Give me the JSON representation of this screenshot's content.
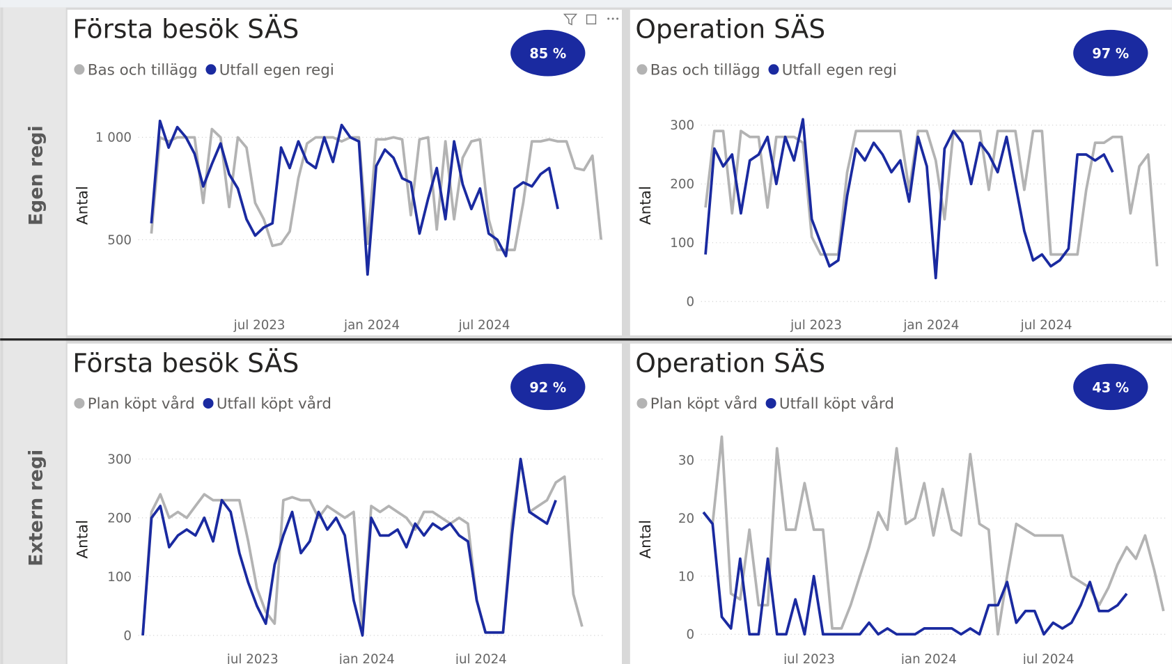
{
  "row_labels": [
    "Egen regi",
    "Extern regi"
  ],
  "chart_data": [
    {
      "type": "line",
      "title": "Första besök SÄS",
      "kpi": {
        "value": 85,
        "label": "85 %"
      },
      "y_label": "Antal",
      "grid": true,
      "xlim": [
        -3,
        105
      ],
      "xticks": [
        {
          "value": 25,
          "label": "jul 2023"
        },
        {
          "value": 51,
          "label": "jan 2024"
        },
        {
          "value": 77,
          "label": "jul 2024"
        }
      ],
      "ylim": [
        175,
        1160
      ],
      "yticks": [
        500,
        {
          "value": 1000,
          "label": "1 000"
        }
      ],
      "series": [
        {
          "name": "Bas och tillägg",
          "color": "#b3b3b3",
          "x": [
            0,
            2,
            4,
            6,
            8,
            10,
            12,
            14,
            16,
            18,
            20,
            22,
            24,
            26,
            28,
            30,
            32,
            34,
            36,
            38,
            40,
            42,
            44,
            46,
            48,
            50,
            52,
            54,
            56,
            58,
            60,
            62,
            64,
            66,
            68,
            70,
            72,
            74,
            76,
            78,
            80,
            82,
            84,
            86,
            88,
            90,
            92,
            94,
            96,
            98,
            100,
            102,
            104
          ],
          "values": [
            530,
            1000,
            980,
            1000,
            1000,
            1000,
            680,
            1040,
            1000,
            660,
            1000,
            950,
            680,
            600,
            470,
            480,
            540,
            800,
            970,
            1000,
            1000,
            1000,
            980,
            1000,
            1000,
            480,
            990,
            990,
            1000,
            990,
            620,
            990,
            1000,
            550,
            980,
            600,
            900,
            980,
            990,
            600,
            450,
            450,
            450,
            680,
            980,
            980,
            990,
            980,
            980,
            850,
            840,
            910,
            500
          ]
        },
        {
          "name": "Utfall egen regi",
          "color": "#1a2aa0",
          "x": [
            0,
            2,
            4,
            6,
            8,
            10,
            12,
            14,
            16,
            18,
            20,
            22,
            24,
            26,
            28,
            30,
            32,
            34,
            36,
            38,
            40,
            42,
            44,
            46,
            48,
            50,
            52,
            54,
            56,
            58,
            60,
            62,
            64,
            66,
            68,
            70,
            72,
            74,
            76,
            78,
            80,
            82,
            84,
            86,
            88,
            90,
            92,
            94
          ],
          "values": [
            580,
            1080,
            950,
            1050,
            1000,
            920,
            760,
            870,
            970,
            820,
            750,
            600,
            520,
            560,
            580,
            950,
            850,
            980,
            880,
            850,
            1000,
            880,
            1060,
            1000,
            980,
            330,
            860,
            940,
            900,
            800,
            780,
            530,
            700,
            850,
            600,
            980,
            770,
            650,
            750,
            530,
            500,
            420,
            750,
            780,
            760,
            820,
            850,
            650
          ]
        }
      ]
    },
    {
      "type": "line",
      "title": "Operation SÄS",
      "kpi": {
        "value": 97,
        "label": "97 %"
      },
      "y_label": "Antal",
      "grid": true,
      "xlim": [
        -1,
        104.5
      ],
      "xticks": [
        {
          "value": 25,
          "label": "jul 2023"
        },
        {
          "value": 51,
          "label": "jan 2024"
        },
        {
          "value": 77,
          "label": "jul 2024"
        }
      ],
      "ylim": [
        -8,
        335
      ],
      "yticks": [
        0,
        100,
        200,
        300
      ],
      "series": [
        {
          "name": "Bas och tillägg",
          "color": "#b3b3b3",
          "x": [
            0,
            2,
            4,
            6,
            8,
            10,
            12,
            14,
            16,
            18,
            20,
            22,
            24,
            26,
            28,
            30,
            32,
            34,
            36,
            38,
            40,
            42,
            44,
            46,
            48,
            50,
            52,
            54,
            56,
            58,
            60,
            62,
            64,
            66,
            68,
            70,
            72,
            74,
            76,
            78,
            80,
            82,
            84,
            86,
            88,
            90,
            92,
            94,
            96,
            98,
            100,
            102
          ],
          "values": [
            160,
            290,
            290,
            150,
            290,
            280,
            280,
            160,
            280,
            280,
            280,
            270,
            110,
            80,
            80,
            80,
            220,
            290,
            290,
            290,
            290,
            290,
            290,
            190,
            290,
            290,
            240,
            140,
            290,
            290,
            290,
            290,
            190,
            290,
            290,
            290,
            190,
            290,
            290,
            80,
            80,
            80,
            80,
            190,
            270,
            270,
            280,
            280,
            150,
            230,
            250,
            60
          ]
        },
        {
          "name": "Utfall egen regi",
          "color": "#1a2aa0",
          "x": [
            0,
            2,
            4,
            6,
            8,
            10,
            12,
            14,
            16,
            18,
            20,
            22,
            24,
            26,
            28,
            30,
            32,
            34,
            36,
            38,
            40,
            42,
            44,
            46,
            48,
            50,
            52,
            54,
            56,
            58,
            60,
            62,
            64,
            66,
            68,
            70,
            72,
            74,
            76,
            78,
            80,
            82,
            84,
            86,
            88,
            90,
            92
          ],
          "values": [
            80,
            260,
            230,
            250,
            150,
            240,
            250,
            280,
            200,
            280,
            240,
            310,
            140,
            100,
            60,
            70,
            180,
            260,
            240,
            270,
            250,
            220,
            240,
            170,
            280,
            230,
            40,
            260,
            290,
            270,
            200,
            270,
            250,
            220,
            280,
            200,
            120,
            70,
            80,
            60,
            70,
            90,
            250,
            250,
            240,
            250,
            220
          ]
        }
      ]
    },
    {
      "type": "line",
      "title": "Första besök SÄS",
      "kpi": {
        "value": 92,
        "label": "92 %"
      },
      "y_label": "Antal",
      "grid": true,
      "xlim": [
        -1,
        105.3
      ],
      "xticks": [
        {
          "value": 25,
          "label": "jul 2023"
        },
        {
          "value": 51,
          "label": "jan 2024"
        },
        {
          "value": 77,
          "label": "jul 2024"
        }
      ],
      "ylim": [
        -8,
        335
      ],
      "yticks": [
        0,
        100,
        200,
        300
      ],
      "series": [
        {
          "name": "Plan köpt vård",
          "color": "#b3b3b3",
          "x": [
            0,
            2,
            4,
            6,
            8,
            10,
            12,
            14,
            16,
            18,
            20,
            22,
            24,
            26,
            28,
            30,
            32,
            34,
            36,
            38,
            40,
            42,
            44,
            46,
            48,
            50,
            52,
            54,
            56,
            58,
            60,
            62,
            64,
            66,
            68,
            70,
            72,
            74,
            76,
            78,
            80,
            82,
            84,
            86,
            88,
            90,
            92,
            94,
            96,
            98,
            100
          ],
          "values": [
            0,
            210,
            240,
            200,
            210,
            200,
            220,
            240,
            230,
            230,
            230,
            230,
            160,
            80,
            40,
            20,
            230,
            235,
            230,
            230,
            200,
            220,
            210,
            200,
            210,
            10,
            220,
            210,
            220,
            210,
            200,
            180,
            210,
            210,
            200,
            190,
            200,
            190,
            60,
            5,
            5,
            5,
            190,
            300,
            210,
            220,
            230,
            260,
            270,
            70,
            15
          ]
        },
        {
          "name": "Utfall köpt vård",
          "color": "#1a2aa0",
          "x": [
            0,
            2,
            4,
            6,
            8,
            10,
            12,
            14,
            16,
            18,
            20,
            22,
            24,
            26,
            28,
            30,
            32,
            34,
            36,
            38,
            40,
            42,
            44,
            46,
            48,
            50,
            52,
            54,
            56,
            58,
            60,
            62,
            64,
            66,
            68,
            70,
            72,
            74,
            76,
            78,
            80,
            82,
            84,
            86,
            88,
            90,
            92,
            94
          ],
          "values": [
            0,
            200,
            220,
            150,
            170,
            180,
            170,
            200,
            160,
            230,
            210,
            140,
            90,
            50,
            20,
            120,
            170,
            210,
            140,
            160,
            210,
            180,
            200,
            170,
            60,
            0,
            200,
            170,
            170,
            180,
            150,
            190,
            170,
            190,
            180,
            190,
            170,
            160,
            60,
            5,
            5,
            5,
            170,
            300,
            210,
            200,
            190,
            230
          ]
        }
      ]
    },
    {
      "type": "line",
      "title": "Operation SÄS",
      "kpi": {
        "value": 43,
        "label": "43 %"
      },
      "y_label": "Antal",
      "grid": true,
      "xlim": [
        1.5,
        103
      ],
      "xticks": [
        {
          "value": 25,
          "label": "jul 2023"
        },
        {
          "value": 51,
          "label": "jan 2024"
        },
        {
          "value": 77,
          "label": "jul 2024"
        }
      ],
      "ylim": [
        -1,
        33.7
      ],
      "yticks": [
        0,
        10,
        20,
        30
      ],
      "series": [
        {
          "name": "Plan köpt vård",
          "color": "#b3b3b3",
          "x": [
            2,
            4,
            6,
            8,
            10,
            12,
            14,
            16,
            18,
            20,
            22,
            24,
            26,
            28,
            30,
            32,
            34,
            36,
            38,
            40,
            42,
            44,
            46,
            48,
            50,
            52,
            54,
            56,
            58,
            60,
            62,
            64,
            66,
            68,
            70,
            72,
            74,
            76,
            78,
            80,
            82,
            84,
            86,
            88,
            90,
            92,
            94,
            96,
            98,
            100,
            102
          ],
          "values": [
            21,
            19,
            34,
            7,
            6,
            18,
            5,
            5,
            32,
            18,
            18,
            26,
            18,
            18,
            1,
            1,
            5,
            10,
            15,
            21,
            18,
            32,
            19,
            20,
            26,
            17,
            25,
            18,
            17,
            31,
            19,
            18,
            0,
            10,
            19,
            18,
            17,
            17,
            17,
            17,
            10,
            9,
            8,
            5,
            8,
            12,
            15,
            13,
            17,
            11,
            4
          ]
        },
        {
          "name": "Utfall köpt vård",
          "color": "#1a2aa0",
          "x": [
            2,
            4,
            6,
            8,
            10,
            12,
            14,
            16,
            18,
            20,
            22,
            24,
            26,
            28,
            30,
            32,
            34,
            36,
            38,
            40,
            42,
            44,
            46,
            48,
            50,
            52,
            54,
            56,
            58,
            60,
            62,
            64,
            66,
            68,
            70,
            72,
            74,
            76,
            78,
            80,
            82,
            84,
            86,
            88,
            90,
            92,
            94
          ],
          "values": [
            21,
            19,
            3,
            1,
            13,
            0,
            0,
            13,
            0,
            0,
            6,
            0,
            10,
            0,
            0,
            0,
            0,
            0,
            2,
            0,
            1,
            0,
            0,
            0,
            1,
            1,
            1,
            1,
            0,
            1,
            0,
            5,
            5,
            9,
            2,
            4,
            4,
            0,
            2,
            1,
            2,
            5,
            9,
            4,
            4,
            5,
            7
          ]
        }
      ]
    }
  ]
}
